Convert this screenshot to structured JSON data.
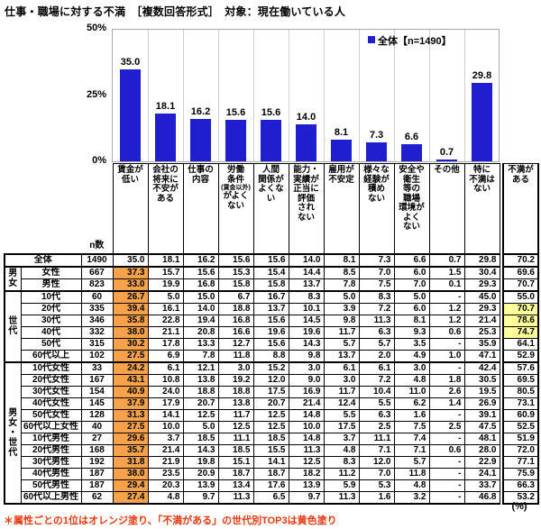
{
  "title": "仕事・職場に対する不満　［複数回答形式］　対象：現在働いている人",
  "note": "＊属性ごとの1位はオレンジ塗り、「不満がある」の世代別TOP3は黄色塗り",
  "unit_label": "(%)",
  "colors": {
    "bar": "#1f1fd0",
    "orange": "#f5a24b",
    "yellow": "#ffff99",
    "note": "#e8380d",
    "grid": "#d0d0d0"
  },
  "chart_data": {
    "type": "bar",
    "title": "仕事・職場に対する不満（全体）",
    "categories": [
      "賃金が低い",
      "会社の将来に不安がある",
      "仕事の内容",
      "労働条件(賃金以外)がよくない",
      "人間関係がよくない",
      "能力・実績が正当に評価されない",
      "雇用が不安定",
      "様々な経験が積めない",
      "安全や衛生等の職場環境がよくない",
      "その他",
      "特に不満はない"
    ],
    "values": [
      35.0,
      18.1,
      16.2,
      15.6,
      15.6,
      14.0,
      8.1,
      7.3,
      6.6,
      0.7,
      29.8
    ],
    "legend": "全体【n=1490】",
    "ylabel": "%",
    "ylim": [
      0,
      50
    ],
    "yticks": [
      "50%",
      "25%",
      "0%"
    ],
    "grid": "vertical-only",
    "legend_position": "top-right"
  },
  "table": {
    "n_header": "n数",
    "columns": [
      {
        "lines": [
          "賃金が",
          "低い"
        ]
      },
      {
        "lines": [
          "会社の",
          "将来に",
          "不安が",
          "ある"
        ]
      },
      {
        "lines": [
          "仕事の",
          "内容"
        ]
      },
      {
        "lines": [
          "労働",
          "条件",
          {
            "t": "(賃金以外)",
            "small": true
          },
          "がよく",
          "ない"
        ]
      },
      {
        "lines": [
          "人間",
          "関係が",
          "よくな",
          "い"
        ]
      },
      {
        "lines": [
          "能力・",
          "実績が",
          "正当に",
          "評価",
          "され",
          "ない"
        ]
      },
      {
        "lines": [
          "雇用が",
          "不安定"
        ]
      },
      {
        "lines": [
          "様々な",
          "経験が",
          "積め",
          "ない"
        ]
      },
      {
        "lines": [
          "安全や",
          "衛生",
          "等の",
          "職場",
          "環境が",
          "よく",
          "ない"
        ]
      },
      {
        "lines": [
          "その他"
        ]
      },
      {
        "lines": [
          "特に",
          "不満は",
          "ない"
        ]
      },
      {
        "lines": [
          "不満が",
          "ある"
        ]
      }
    ],
    "rows": [
      {
        "label": "全体",
        "n": "1490",
        "values": [
          "35.0",
          "18.1",
          "16.2",
          "15.6",
          "15.6",
          "14.0",
          "8.1",
          "7.3",
          "6.6",
          "0.7",
          "29.8",
          "70.2"
        ],
        "orange": false,
        "yellow": false
      },
      {
        "group": "男女",
        "group_span": 2,
        "label": "女性",
        "n": "667",
        "values": [
          "37.3",
          "15.7",
          "15.6",
          "15.3",
          "15.4",
          "14.4",
          "8.5",
          "7.0",
          "6.0",
          "1.5",
          "30.4",
          "69.6"
        ],
        "orange": true,
        "yellow": false
      },
      {
        "label": "男性",
        "n": "823",
        "values": [
          "33.0",
          "19.9",
          "16.8",
          "15.8",
          "15.8",
          "13.7",
          "7.8",
          "7.5",
          "7.0",
          "0.1",
          "29.3",
          "70.7"
        ],
        "orange": true,
        "yellow": false
      },
      {
        "group": "世代",
        "group_span": 6,
        "label": "10代",
        "n": "60",
        "values": [
          "26.7",
          "5.0",
          "15.0",
          "6.7",
          "16.7",
          "8.3",
          "5.0",
          "8.3",
          "5.0",
          "-",
          "45.0",
          "55.0"
        ],
        "orange": true,
        "yellow": false
      },
      {
        "label": "20代",
        "n": "335",
        "values": [
          "39.4",
          "16.1",
          "14.0",
          "18.8",
          "13.7",
          "10.1",
          "3.9",
          "7.2",
          "6.0",
          "1.2",
          "29.3",
          "70.7"
        ],
        "orange": true,
        "yellow": true
      },
      {
        "label": "30代",
        "n": "346",
        "values": [
          "35.8",
          "22.8",
          "19.4",
          "16.8",
          "15.6",
          "14.5",
          "9.8",
          "11.3",
          "8.1",
          "1.2",
          "21.4",
          "78.6"
        ],
        "orange": true,
        "yellow": true
      },
      {
        "label": "40代",
        "n": "332",
        "values": [
          "38.0",
          "21.1",
          "20.8",
          "16.6",
          "19.6",
          "19.6",
          "11.7",
          "6.3",
          "9.3",
          "0.6",
          "25.3",
          "74.7"
        ],
        "orange": true,
        "yellow": true
      },
      {
        "label": "50代",
        "n": "315",
        "values": [
          "30.2",
          "17.8",
          "13.3",
          "12.7",
          "15.6",
          "14.3",
          "5.7",
          "5.7",
          "3.5",
          "-",
          "35.9",
          "64.1"
        ],
        "orange": true,
        "yellow": false
      },
      {
        "label": "60代以上",
        "n": "102",
        "values": [
          "27.5",
          "6.9",
          "7.8",
          "11.8",
          "8.8",
          "9.8",
          "13.7",
          "2.0",
          "4.9",
          "1.0",
          "47.1",
          "52.9"
        ],
        "orange": true,
        "yellow": false
      },
      {
        "group": "男女・世代",
        "group_span": 12,
        "label": "10代女性",
        "n": "33",
        "values": [
          "24.2",
          "6.1",
          "12.1",
          "3.0",
          "15.2",
          "3.0",
          "6.1",
          "6.1",
          "3.0",
          "-",
          "42.4",
          "57.6"
        ],
        "orange": true,
        "yellow": false
      },
      {
        "label": "20代女性",
        "n": "167",
        "values": [
          "43.1",
          "10.8",
          "13.8",
          "19.2",
          "12.0",
          "9.0",
          "3.0",
          "7.2",
          "4.8",
          "1.8",
          "30.5",
          "69.5"
        ],
        "orange": true,
        "yellow": false
      },
      {
        "label": "30代女性",
        "n": "154",
        "values": [
          "40.9",
          "24.0",
          "18.8",
          "18.8",
          "17.5",
          "16.9",
          "11.7",
          "10.4",
          "11.0",
          "2.6",
          "19.5",
          "80.5"
        ],
        "orange": true,
        "yellow": false
      },
      {
        "label": "40代女性",
        "n": "145",
        "values": [
          "37.9",
          "17.9",
          "20.7",
          "13.8",
          "20.7",
          "21.4",
          "12.4",
          "5.5",
          "6.2",
          "1.4",
          "26.9",
          "73.1"
        ],
        "orange": true,
        "yellow": false
      },
      {
        "label": "50代女性",
        "n": "128",
        "values": [
          "31.3",
          "14.1",
          "12.5",
          "11.7",
          "12.5",
          "14.8",
          "5.5",
          "6.3",
          "1.6",
          "-",
          "39.1",
          "60.9"
        ],
        "orange": true,
        "yellow": false
      },
      {
        "label": "60代以上女性",
        "n": "40",
        "values": [
          "27.5",
          "10.0",
          "5.0",
          "12.5",
          "12.5",
          "10.0",
          "17.5",
          "2.5",
          "7.5",
          "2.5",
          "47.5",
          "52.5"
        ],
        "orange": true,
        "yellow": false
      },
      {
        "label": "10代男性",
        "n": "27",
        "values": [
          "29.6",
          "3.7",
          "18.5",
          "11.1",
          "18.5",
          "14.8",
          "3.7",
          "11.1",
          "7.4",
          "-",
          "48.1",
          "51.9"
        ],
        "orange": true,
        "yellow": false
      },
      {
        "label": "20代男性",
        "n": "168",
        "values": [
          "35.7",
          "21.4",
          "14.3",
          "18.5",
          "15.5",
          "11.3",
          "4.8",
          "7.1",
          "7.1",
          "0.6",
          "28.0",
          "72.0"
        ],
        "orange": true,
        "yellow": false
      },
      {
        "label": "30代男性",
        "n": "192",
        "values": [
          "31.8",
          "21.9",
          "19.8",
          "15.1",
          "14.1",
          "12.5",
          "8.3",
          "12.0",
          "5.7",
          "-",
          "22.9",
          "77.1"
        ],
        "orange": true,
        "yellow": false
      },
      {
        "label": "40代男性",
        "n": "187",
        "values": [
          "38.0",
          "23.5",
          "20.9",
          "18.7",
          "18.7",
          "18.2",
          "11.2",
          "7.0",
          "11.8",
          "-",
          "24.1",
          "75.9"
        ],
        "orange": true,
        "yellow": false
      },
      {
        "label": "50代男性",
        "n": "187",
        "values": [
          "29.4",
          "20.3",
          "13.9",
          "13.4",
          "17.6",
          "13.9",
          "5.9",
          "5.3",
          "4.8",
          "-",
          "33.7",
          "66.3"
        ],
        "orange": true,
        "yellow": false
      },
      {
        "label": "60代以上男性",
        "n": "62",
        "values": [
          "27.4",
          "4.8",
          "9.7",
          "11.3",
          "6.5",
          "9.7",
          "11.3",
          "1.6",
          "3.2",
          "-",
          "46.8",
          "53.2"
        ],
        "orange": true,
        "yellow": false
      }
    ]
  }
}
